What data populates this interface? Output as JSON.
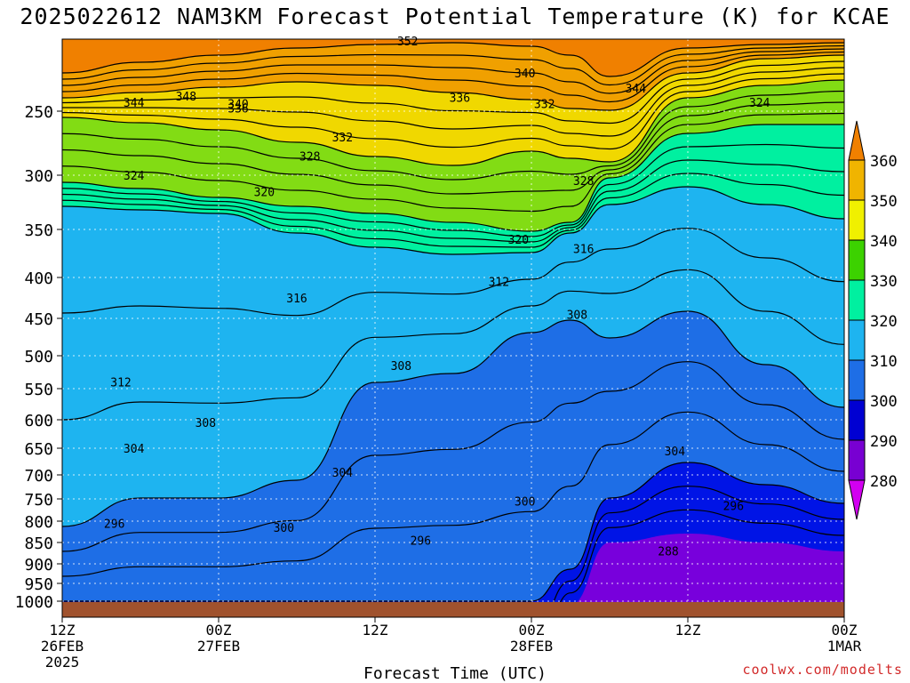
{
  "title": "2025022612 NAM3KM Forecast Potential Temperature (K) for KCAE",
  "watermark": "coolwx.com/modelts",
  "chart_data": {
    "type": "heatmap",
    "title": "2025022612 NAM3KM Forecast Potential Temperature (K) for KCAE",
    "xlabel": "Forecast Time (UTC)",
    "ylabel": "",
    "x_ticks": [
      {
        "label": "12Z",
        "sub": "26FEB",
        "sub2": "2025",
        "hour": 0
      },
      {
        "label": "00Z",
        "sub": "27FEB",
        "sub2": "",
        "hour": 12
      },
      {
        "label": "12Z",
        "sub": "",
        "sub2": "",
        "hour": 24
      },
      {
        "label": "00Z",
        "sub": "28FEB",
        "sub2": "",
        "hour": 36
      },
      {
        "label": "12Z",
        "sub": "",
        "sub2": "",
        "hour": 48
      },
      {
        "label": "00Z",
        "sub": "1MAR",
        "sub2": "",
        "hour": 60
      }
    ],
    "y_ticks": [
      {
        "label": "250",
        "row": 4
      },
      {
        "label": "300",
        "row": 5
      },
      {
        "label": "350",
        "row": 6
      },
      {
        "label": "400",
        "row": 7
      },
      {
        "label": "450",
        "row": 8
      },
      {
        "label": "500",
        "row": 9
      },
      {
        "label": "550",
        "row": 10
      },
      {
        "label": "600",
        "row": 11
      },
      {
        "label": "650",
        "row": 12
      },
      {
        "label": "700",
        "row": 13
      },
      {
        "label": "750",
        "row": 14
      },
      {
        "label": "800",
        "row": 15
      },
      {
        "label": "850",
        "row": 16
      },
      {
        "label": "900",
        "row": 17
      },
      {
        "label": "950",
        "row": 18
      },
      {
        "label": "1000",
        "row": 19
      }
    ],
    "colorbar": {
      "levels": [
        "360",
        "350",
        "340",
        "330",
        "320",
        "310",
        "300",
        "290",
        "280"
      ],
      "colors": [
        "#f08000",
        "#f0b400",
        "#f0f000",
        "#3cd200",
        "#00f0a0",
        "#1eb4f0",
        "#1e6ee6",
        "#0000d2",
        "#7800d2",
        "#d200f0"
      ]
    },
    "bands": [
      {
        "level": "350-360",
        "color": "#f0a000"
      },
      {
        "level": "340-350",
        "color": "#f0d800"
      },
      {
        "level": "330-340",
        "color": "#82dc14"
      },
      {
        "level": "320-330",
        "color": "#00f0a0"
      },
      {
        "level": "310-320",
        "color": "#1eb4f0"
      },
      {
        "level": "300-310",
        "color": "#1e6ee6"
      },
      {
        "level": "290-300",
        "color": "#0014e6"
      },
      {
        "level": "280-290",
        "color": "#7800dc"
      }
    ],
    "contour_labels": [
      {
        "text": "352",
        "hour": 26.5,
        "row": 0.1
      },
      {
        "text": "340",
        "hour": 35.5,
        "row": 1.7
      },
      {
        "text": "344",
        "hour": 44,
        "row": 2.5
      },
      {
        "text": "348",
        "hour": 9.5,
        "row": 3.0
      },
      {
        "text": "344",
        "hour": 5.5,
        "row": 3.4
      },
      {
        "text": "336",
        "hour": 30.5,
        "row": 3.1
      },
      {
        "text": "340",
        "hour": 13.5,
        "row": 3.5
      },
      {
        "text": "336",
        "hour": 13.5,
        "row": 3.8
      },
      {
        "text": "332",
        "hour": 37,
        "row": 3.5
      },
      {
        "text": "324",
        "hour": 53.5,
        "row": 3.4
      },
      {
        "text": "332",
        "hour": 21.5,
        "row": 4.4
      },
      {
        "text": "328",
        "hour": 19,
        "row": 4.7
      },
      {
        "text": "324",
        "hour": 5.5,
        "row": 5.0
      },
      {
        "text": "328",
        "hour": 40,
        "row": 5.1
      },
      {
        "text": "320",
        "hour": 15.5,
        "row": 5.3
      },
      {
        "text": "320",
        "hour": 35,
        "row": 6.2
      },
      {
        "text": "316",
        "hour": 40,
        "row": 6.4
      },
      {
        "text": "312",
        "hour": 33.5,
        "row": 7.1
      },
      {
        "text": "316",
        "hour": 18,
        "row": 7.5
      },
      {
        "text": "308",
        "hour": 39.5,
        "row": 7.9
      },
      {
        "text": "308",
        "hour": 26,
        "row": 9.3
      },
      {
        "text": "312",
        "hour": 4.5,
        "row": 9.8
      },
      {
        "text": "308",
        "hour": 11,
        "row": 11.1
      },
      {
        "text": "304",
        "hour": 5.5,
        "row": 12.0
      },
      {
        "text": "304",
        "hour": 47,
        "row": 12.1
      },
      {
        "text": "304",
        "hour": 21.5,
        "row": 12.9
      },
      {
        "text": "300",
        "hour": 35.5,
        "row": 14.1
      },
      {
        "text": "296",
        "hour": 51.5,
        "row": 14.3
      },
      {
        "text": "296",
        "hour": 4,
        "row": 15.1
      },
      {
        "text": "300",
        "hour": 17,
        "row": 15.3
      },
      {
        "text": "296",
        "hour": 27.5,
        "row": 15.9
      },
      {
        "text": "288",
        "hour": 46.5,
        "row": 16.4
      }
    ]
  }
}
